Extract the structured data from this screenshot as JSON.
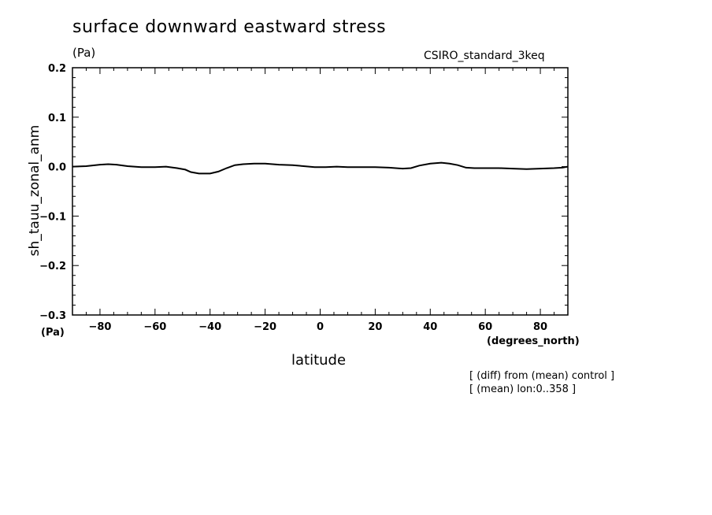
{
  "chart_data": {
    "type": "line",
    "title": "surface downward eastward stress",
    "units": "(Pa)",
    "model": "CSIRO_standard_3keq",
    "xlabel": "latitude",
    "ylabel": "sh_tauu_zonal_anm",
    "y_units": "(Pa)",
    "x_units": "(degrees_north)",
    "xlim": [
      -90,
      90
    ],
    "ylim": [
      -0.3,
      0.2
    ],
    "x_ticks": [
      -80,
      -60,
      -40,
      -20,
      0,
      20,
      40,
      60,
      80
    ],
    "x_tick_labels": [
      "−80",
      "−60",
      "−40",
      "−20",
      "0",
      "20",
      "40",
      "60",
      "80"
    ],
    "y_ticks": [
      -0.3,
      -0.2,
      -0.1,
      0.0,
      0.1,
      0.2
    ],
    "y_tick_labels": [
      "−0.3",
      "−0.2",
      "−0.1",
      "0.0",
      "0.1",
      "0.2"
    ],
    "grid": false,
    "notes": [
      "[ (diff) from (mean) control ]",
      "[ (mean) lon:0..358 ]"
    ],
    "series": [
      {
        "x": [
          -90,
          -85,
          -80,
          -77,
          -74,
          -70,
          -65,
          -60,
          -56,
          -52,
          -49,
          -47,
          -44,
          -40,
          -37,
          -34,
          -31,
          -28,
          -24,
          -20,
          -15,
          -10,
          -6,
          -2,
          2,
          6,
          10,
          15,
          20,
          25,
          30,
          33,
          36,
          40,
          44,
          47,
          50,
          53,
          56,
          60,
          65,
          70,
          75,
          80,
          85,
          88,
          90
        ],
        "y": [
          0.0,
          0.001,
          0.004,
          0.005,
          0.004,
          0.001,
          -0.001,
          -0.001,
          0.0,
          -0.003,
          -0.006,
          -0.011,
          -0.014,
          -0.014,
          -0.01,
          -0.003,
          0.003,
          0.005,
          0.006,
          0.006,
          0.004,
          0.003,
          0.001,
          -0.001,
          -0.001,
          0.0,
          -0.001,
          -0.001,
          -0.001,
          -0.002,
          -0.004,
          -0.003,
          0.002,
          0.006,
          0.008,
          0.006,
          0.003,
          -0.002,
          -0.003,
          -0.003,
          -0.003,
          -0.004,
          -0.005,
          -0.004,
          -0.003,
          -0.002,
          0.0
        ]
      }
    ]
  }
}
